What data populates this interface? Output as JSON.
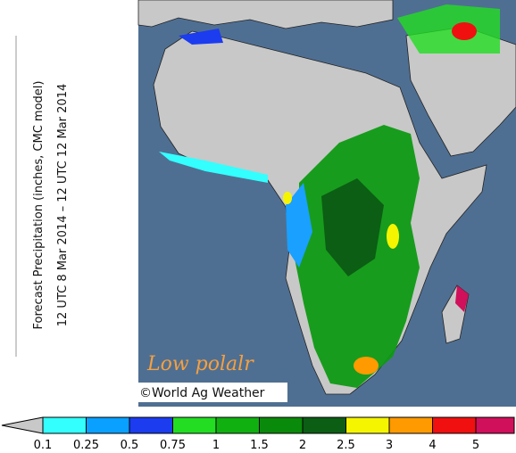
{
  "title_lines": [
    "Forecast Precipitation (inches, CMC model)",
    "12 UTC 8 Mar 2014 – 12 UTC 12 Mar 2014"
  ],
  "annotation": "Low polalr",
  "copyright": "©World Ag Weather",
  "colorbar": {
    "ticks": [
      0.1,
      0.25,
      0.5,
      0.75,
      1,
      1.5,
      2,
      2.5,
      3,
      4,
      5
    ],
    "below_color": "#c8c8c8",
    "colors": [
      "#33ffff",
      "#0aa0ff",
      "#1c3cf0",
      "#22dd22",
      "#10b010",
      "#0a8a0a",
      "#0b5e14",
      "#f5f500",
      "#ff9a00",
      "#f01010",
      "#d0105a"
    ]
  }
}
